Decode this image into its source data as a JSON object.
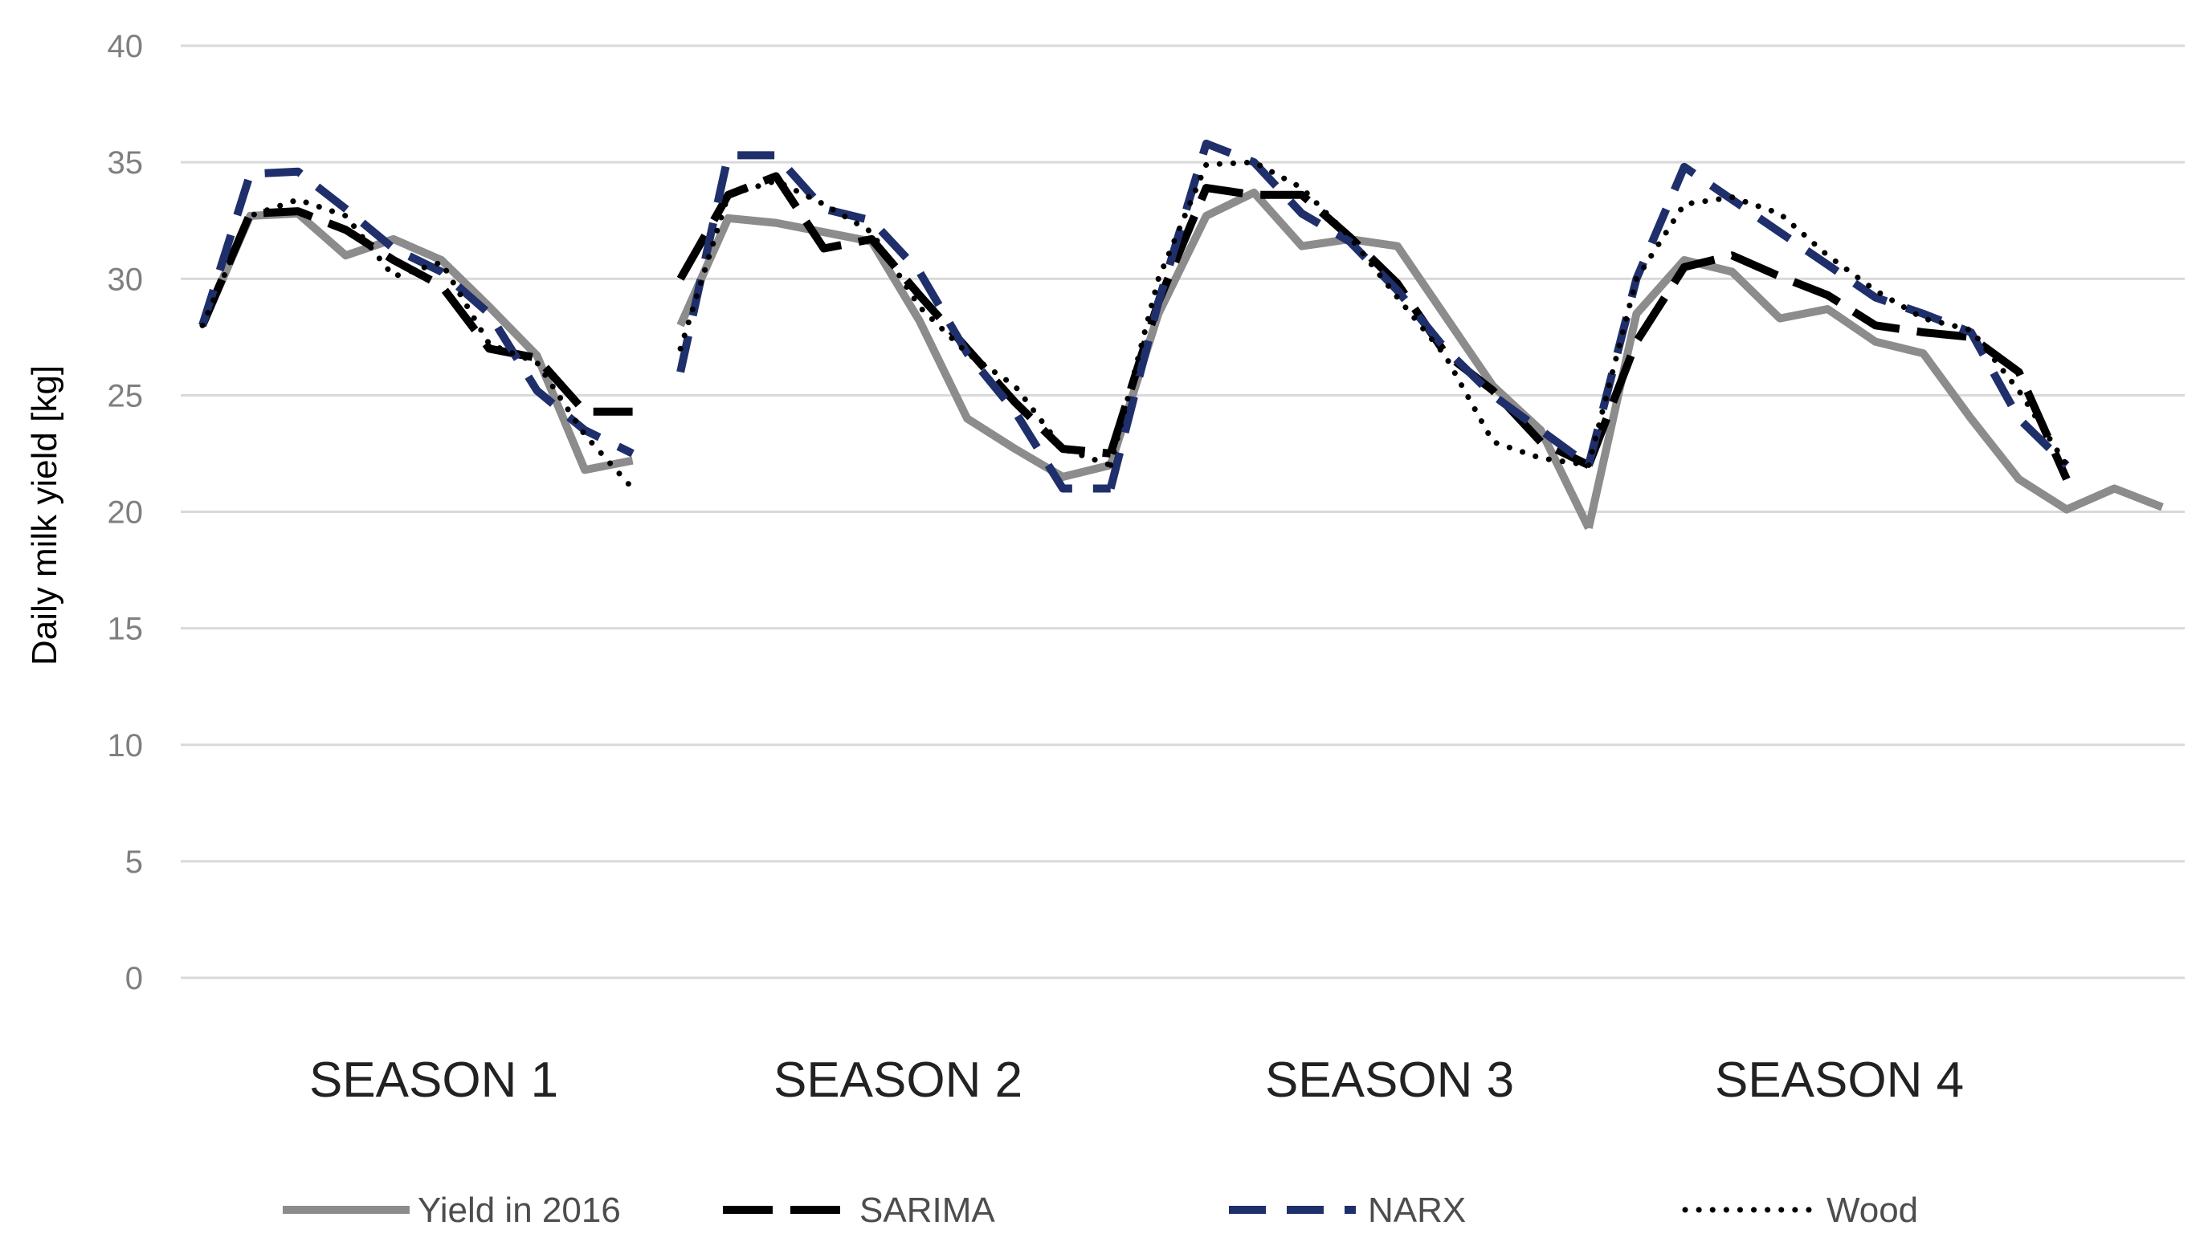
{
  "chart_data": {
    "type": "line",
    "title": "",
    "xlabel": "",
    "ylabel": "Daily milk yield [kg]",
    "ylim": [
      0,
      40
    ],
    "yticks": [
      0,
      5,
      10,
      15,
      20,
      25,
      30,
      35,
      40
    ],
    "grid": true,
    "legend_position": "bottom",
    "categories": [
      "SEASON 1",
      "SEASON 2",
      "SEASON 3",
      "SEASON 4"
    ],
    "series": [
      {
        "name": "Yield in 2016",
        "color": "#8c8c8c",
        "dash": "solid",
        "segments": [
          {
            "x": [
              0,
              1,
              2,
              3,
              4,
              5,
              6,
              7,
              8,
              9
            ],
            "y": [
              28.0,
              32.7,
              32.8,
              31.0,
              31.7,
              30.8,
              28.8,
              26.7,
              21.8,
              22.2
            ]
          },
          {
            "x": [
              10,
              11,
              12,
              13,
              14,
              15,
              16,
              17,
              18,
              19
            ],
            "y": [
              28.0,
              32.6,
              32.4,
              32.0,
              31.6,
              28.2,
              24.0,
              22.7,
              21.5,
              22.0
            ]
          },
          {
            "x": [
              19,
              20,
              21,
              22,
              23,
              24,
              25,
              26,
              27,
              28,
              29
            ],
            "y": [
              22.0,
              28.5,
              32.7,
              33.7,
              31.4,
              31.7,
              31.4,
              28.4,
              25.4,
              23.5,
              19.3
            ]
          },
          {
            "x": [
              29,
              30,
              31,
              32,
              33,
              34,
              35,
              36,
              37,
              38,
              39,
              40,
              41
            ],
            "y": [
              19.3,
              28.5,
              30.8,
              30.3,
              28.3,
              28.7,
              27.3,
              26.8,
              24.0,
              21.4,
              20.1,
              21.0,
              20.2
            ]
          }
        ]
      },
      {
        "name": "SARIMA",
        "color": "#000000",
        "dash": "long-dash",
        "segments": [
          {
            "x": [
              0,
              1,
              2,
              3,
              4,
              5,
              6,
              7,
              8,
              9
            ],
            "y": [
              28.0,
              32.8,
              32.9,
              32.1,
              30.8,
              29.7,
              27.0,
              26.6,
              24.3,
              24.3
            ]
          },
          {
            "x": [
              10,
              11,
              12,
              13,
              14,
              15,
              16,
              17,
              18,
              19
            ],
            "y": [
              30.0,
              33.6,
              34.4,
              31.3,
              31.7,
              29.3,
              27.0,
              24.7,
              22.7,
              22.5
            ]
          },
          {
            "x": [
              19,
              20,
              21,
              22,
              23,
              24,
              25,
              26,
              27,
              28,
              29
            ],
            "y": [
              22.5,
              29.0,
              33.9,
              33.6,
              33.6,
              31.8,
              29.8,
              26.8,
              25.2,
              23.0,
              22.0
            ]
          },
          {
            "x": [
              29,
              30,
              31,
              32,
              33,
              34,
              35,
              36,
              37,
              38,
              39
            ],
            "y": [
              22.0,
              27.3,
              30.5,
              31.0,
              30.1,
              29.3,
              28.0,
              27.7,
              27.5,
              26.0,
              21.4
            ]
          }
        ]
      },
      {
        "name": "NARX",
        "color": "#1f2f6b",
        "dash": "dash",
        "segments": [
          {
            "x": [
              0,
              1,
              2,
              3,
              4,
              5,
              6,
              7,
              8,
              9
            ],
            "y": [
              28.0,
              34.5,
              34.6,
              33.0,
              31.3,
              30.3,
              28.5,
              25.2,
              23.5,
              22.5
            ]
          },
          {
            "x": [
              10,
              11,
              12,
              13,
              14,
              15,
              16,
              17,
              18,
              19
            ],
            "y": [
              26.0,
              35.3,
              35.3,
              33.0,
              32.5,
              30.3,
              26.8,
              24.3,
              21.0,
              21.0
            ]
          },
          {
            "x": [
              19,
              20,
              21,
              22,
              23,
              24,
              25,
              26,
              27,
              28,
              29
            ],
            "y": [
              21.0,
              29.0,
              35.8,
              35.0,
              32.8,
              31.6,
              29.5,
              27.0,
              25.0,
              23.5,
              22.0
            ]
          },
          {
            "x": [
              29,
              30,
              31,
              32,
              33,
              34,
              35,
              36,
              37,
              38,
              39
            ],
            "y": [
              22.0,
              30.0,
              34.8,
              33.4,
              32.0,
              30.6,
              29.2,
              28.5,
              27.7,
              24.0,
              22.0
            ]
          }
        ]
      },
      {
        "name": "Wood",
        "color": "#000000",
        "dash": "dot",
        "segments": [
          {
            "x": [
              0,
              1,
              2,
              3,
              4,
              5,
              6,
              7,
              8,
              9
            ],
            "y": [
              28.0,
              32.7,
              33.4,
              32.7,
              30.1,
              30.7,
              27.2,
              26.4,
              23.3,
              21.0
            ]
          },
          {
            "x": [
              10,
              11,
              12,
              13,
              14,
              15,
              16,
              17,
              18,
              19
            ],
            "y": [
              27.0,
              33.6,
              34.2,
              33.2,
              32.0,
              28.8,
              26.8,
              25.4,
              22.7,
              22.0
            ]
          },
          {
            "x": [
              19,
              20,
              21,
              22,
              23,
              24,
              25,
              26,
              27,
              28,
              29
            ],
            "y": [
              22.0,
              30.0,
              34.9,
              35.0,
              33.9,
              31.8,
              29.2,
              26.7,
              23.0,
              22.3,
              22.0
            ]
          },
          {
            "x": [
              29,
              30,
              31,
              32,
              33,
              34,
              35,
              36,
              37,
              38,
              39
            ],
            "y": [
              22.0,
              30.0,
              33.2,
              33.5,
              32.8,
              31.0,
              29.5,
              28.3,
              27.8,
              25.2,
              22.0
            ]
          }
        ]
      }
    ]
  }
}
